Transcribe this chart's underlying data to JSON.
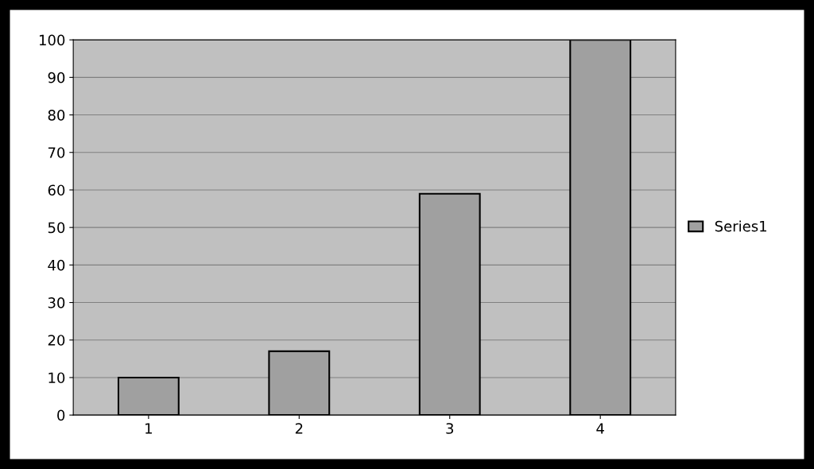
{
  "chart_data": {
    "type": "bar",
    "categories": [
      "1",
      "2",
      "3",
      "4"
    ],
    "series": [
      {
        "name": "Series1",
        "color": "#a0a0a0",
        "values": [
          10,
          17,
          59,
          100
        ]
      }
    ],
    "ylim": [
      0,
      100
    ],
    "yticks": [
      0,
      10,
      20,
      30,
      40,
      50,
      60,
      70,
      80,
      90,
      100
    ],
    "grid": "y",
    "legend": "right"
  }
}
